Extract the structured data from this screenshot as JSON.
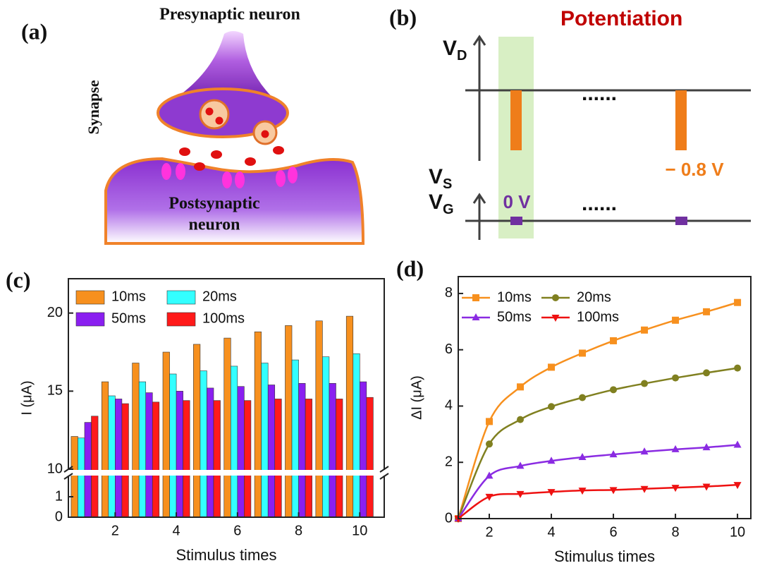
{
  "panel_labels": [
    "(a)",
    "(b)",
    "(c)",
    "(d)"
  ],
  "synapse_diagram": {
    "top_label": "Presynaptic neuron",
    "side_label": "Synapse",
    "bottom_label": [
      "Postsynaptic",
      "neuron"
    ]
  },
  "pulse_diagram": {
    "title": "Potentiation",
    "drain": {
      "symbol": "V",
      "subscript": "D"
    },
    "source": {
      "symbol": "V",
      "subscript": "S"
    },
    "gate": {
      "symbol": "V",
      "subscript": "G"
    },
    "ellipsis": "......",
    "drain_pulse_label": "− 0.8 V",
    "gate_pulse_label": "0 V"
  },
  "chart_data": [
    {
      "type": "bar",
      "xlabel": "Stimulus times",
      "ylabel": "I (μA)",
      "x": [
        1,
        2,
        3,
        4,
        5,
        6,
        7,
        8,
        9,
        10
      ],
      "xlim": [
        0.47,
        10.8
      ],
      "xticks": [
        2,
        4,
        6,
        8,
        10
      ],
      "ylim": [
        0,
        22.2
      ],
      "y_break": [
        2,
        10
      ],
      "yticks": [
        0,
        1,
        10,
        15,
        20
      ],
      "legend": "upper left",
      "series": [
        {
          "name": "10ms",
          "color": "#f7901e",
          "values": [
            12.1,
            15.6,
            16.8,
            17.5,
            18.0,
            18.4,
            18.8,
            19.2,
            19.5,
            19.8
          ]
        },
        {
          "name": "20ms",
          "color": "#33ffff",
          "values": [
            12.0,
            14.7,
            15.6,
            16.1,
            16.3,
            16.6,
            16.8,
            17.0,
            17.2,
            17.4
          ]
        },
        {
          "name": "50ms",
          "color": "#8a1ff0",
          "values": [
            13.0,
            14.5,
            14.9,
            15.0,
            15.2,
            15.3,
            15.4,
            15.5,
            15.5,
            15.6
          ]
        },
        {
          "name": "100ms",
          "color": "#ff1a1a",
          "values": [
            13.4,
            14.2,
            14.3,
            14.4,
            14.4,
            14.4,
            14.5,
            14.5,
            14.5,
            14.6
          ]
        }
      ]
    },
    {
      "type": "line",
      "xlabel": "Stimulus times",
      "ylabel": "ΔI (μA)",
      "x": [
        1,
        2,
        3,
        4,
        5,
        6,
        7,
        8,
        9,
        10
      ],
      "xlim": [
        1,
        10.43
      ],
      "xticks": [
        2,
        4,
        6,
        8,
        10
      ],
      "ylim": [
        0,
        8.6
      ],
      "yticks": [
        0,
        2,
        4,
        6,
        8
      ],
      "legend": "upper left",
      "series": [
        {
          "name": "10ms",
          "color": "#f7901e",
          "marker": "square",
          "values": [
            0,
            3.45,
            4.68,
            5.38,
            5.88,
            6.32,
            6.7,
            7.05,
            7.35,
            7.68
          ]
        },
        {
          "name": "20ms",
          "color": "#808020",
          "marker": "circle",
          "values": [
            0,
            2.65,
            3.52,
            3.98,
            4.3,
            4.58,
            4.8,
            5.0,
            5.18,
            5.35
          ]
        },
        {
          "name": "50ms",
          "color": "#8a2be2",
          "marker": "triangle-up",
          "values": [
            0,
            1.52,
            1.87,
            2.05,
            2.18,
            2.28,
            2.38,
            2.46,
            2.53,
            2.62
          ]
        },
        {
          "name": "100ms",
          "color": "#ee1111",
          "marker": "triangle-down",
          "values": [
            0,
            0.78,
            0.88,
            0.95,
            1.0,
            1.02,
            1.06,
            1.1,
            1.14,
            1.2
          ]
        }
      ]
    }
  ]
}
